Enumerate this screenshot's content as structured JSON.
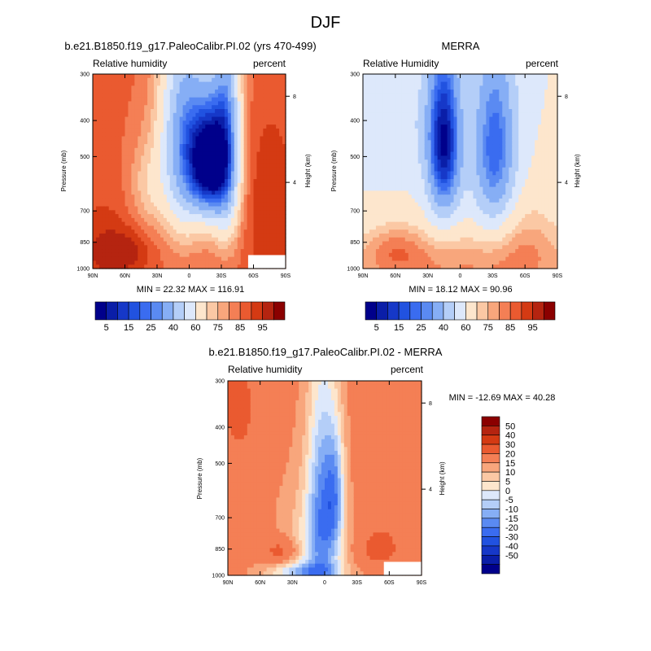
{
  "page_title": "DJF",
  "panels": [
    {
      "title": "b.e21.B1850.f19_g17.PaleoCalibr.PI.02 (yrs 470-499)",
      "left_label": "Relative humidity",
      "right_label": "percent",
      "stats": "MIN =  22.32  MAX = 116.91",
      "ylabel": "Pressure (mb)",
      "y2label": "Height (km)"
    },
    {
      "title": "MERRA",
      "left_label": "Relative Humidity",
      "right_label": "percent",
      "stats": "MIN =  18.12  MAX =  90.96",
      "ylabel": "Pressure (mb)",
      "y2label": "Height (km)"
    },
    {
      "title": "b.e21.B1850.f19_g17.PaleoCalibr.PI.02 - MERRA",
      "left_label": "Relative humidity",
      "right_label": "percent",
      "stats": "MIN = -12.69  MAX =  40.28",
      "ylabel": "Pressure (mb)",
      "y2label": "Height (km)"
    }
  ],
  "chart_data": [
    {
      "type": "heatmap",
      "title": "b.e21.B1850.f19_g17.PaleoCalibr.PI.02 (yrs 470-499)",
      "x_ticks": [
        "90N",
        "60N",
        "30N",
        "0",
        "30S",
        "60S",
        "90S"
      ],
      "x_values": [
        90,
        60,
        30,
        0,
        -30,
        -60,
        -90
      ],
      "y_ticks": [
        "300",
        "400",
        "500",
        "700",
        "850",
        "1000"
      ],
      "y_values": [
        300,
        400,
        500,
        700,
        850,
        1000
      ],
      "y2_ticks": [
        "8",
        "4"
      ],
      "y2_values": [
        8,
        4
      ],
      "xlim": [
        90,
        -90
      ],
      "ylim": [
        1000,
        300
      ],
      "missing_region": {
        "lat_from": -55,
        "lat_to": -90,
        "p_from": 920,
        "p_to": 1000
      },
      "min": 22.32,
      "max": 116.91,
      "field_features": [
        {
          "lat": -18,
          "p": 520,
          "value": 12,
          "spread_lat": 12,
          "spread_p": 130
        },
        {
          "lat": 5,
          "p": 450,
          "value": 30,
          "spread_lat": 16,
          "spread_p": 220
        },
        {
          "lat": -35,
          "p": 470,
          "value": 30,
          "spread_lat": 10,
          "spread_p": 230
        }
      ]
    },
    {
      "type": "heatmap",
      "title": "MERRA",
      "x_ticks": [
        "90N",
        "60N",
        "30N",
        "0",
        "30S",
        "60S",
        "90S"
      ],
      "x_values": [
        90,
        60,
        30,
        0,
        -30,
        -60,
        -90
      ],
      "y_ticks": [
        "300",
        "400",
        "500",
        "700",
        "850",
        "1000"
      ],
      "y_values": [
        300,
        400,
        500,
        700,
        850,
        1000
      ],
      "y2_ticks": [
        "8",
        "4"
      ],
      "y2_values": [
        8,
        4
      ],
      "xlim": [
        90,
        -90
      ],
      "ylim": [
        1000,
        300
      ],
      "min": 18.12,
      "max": 90.96,
      "field_features": [
        {
          "lat": 15,
          "p": 480,
          "value": 10,
          "spread_lat": 10,
          "spread_p": 150
        },
        {
          "lat": -32,
          "p": 500,
          "value": 25,
          "spread_lat": 14,
          "spread_p": 200
        }
      ]
    },
    {
      "type": "heatmap",
      "title": "b.e21.B1850.f19_g17.PaleoCalibr.PI.02 - MERRA",
      "x_ticks": [
        "90N",
        "60N",
        "30N",
        "0",
        "30S",
        "60S",
        "90S"
      ],
      "x_values": [
        90,
        60,
        30,
        0,
        -30,
        -60,
        -90
      ],
      "y_ticks": [
        "300",
        "400",
        "500",
        "700",
        "850",
        "1000"
      ],
      "y_values": [
        300,
        400,
        500,
        700,
        850,
        1000
      ],
      "y2_ticks": [
        "8",
        "4"
      ],
      "y2_values": [
        8,
        4
      ],
      "xlim": [
        90,
        -90
      ],
      "ylim": [
        1000,
        300
      ],
      "missing_region": {
        "lat_from": -55,
        "lat_to": -90,
        "p_from": 920,
        "p_to": 1000
      },
      "min": -12.69,
      "max": 40.28,
      "field_features": [
        {
          "lat": -10,
          "p": 620,
          "value": -12,
          "spread_lat": 6,
          "spread_p": 160
        },
        {
          "lat": 40,
          "p": 860,
          "value": 35,
          "spread_lat": 12,
          "spread_p": 50
        },
        {
          "lat": -50,
          "p": 850,
          "value": 35,
          "spread_lat": 12,
          "spread_p": 60
        }
      ]
    }
  ],
  "colorbars": {
    "rh_levels": [
      5,
      10,
      15,
      20,
      25,
      30,
      40,
      50,
      60,
      70,
      75,
      80,
      85,
      90,
      95
    ],
    "rh_labels": [
      "5",
      "15",
      "25",
      "40",
      "60",
      "75",
      "85",
      "95"
    ],
    "rh_colors": [
      "#00008b",
      "#0a1ea8",
      "#1638c8",
      "#2152e0",
      "#3a6cf0",
      "#5a8af2",
      "#86aef5",
      "#b4cef8",
      "#dde8fb",
      "#fde6cd",
      "#fbc8a4",
      "#f8a67c",
      "#f47f55",
      "#ea5a30",
      "#d43a13",
      "#b52410",
      "#8b0000"
    ],
    "diff_labels": [
      "50",
      "40",
      "30",
      "20",
      "15",
      "10",
      "5",
      "0",
      "-5",
      "-10",
      "-15",
      "-20",
      "-30",
      "-40",
      "-50"
    ],
    "diff_colors": [
      "#8b0000",
      "#b52410",
      "#d43a13",
      "#ea5a30",
      "#f47f55",
      "#f8a67c",
      "#fbc8a4",
      "#fde6cd",
      "#dde8fb",
      "#b4cef8",
      "#86aef5",
      "#5a8af2",
      "#3a6cf0",
      "#2152e0",
      "#1638c8",
      "#0a1ea8",
      "#00008b"
    ]
  }
}
